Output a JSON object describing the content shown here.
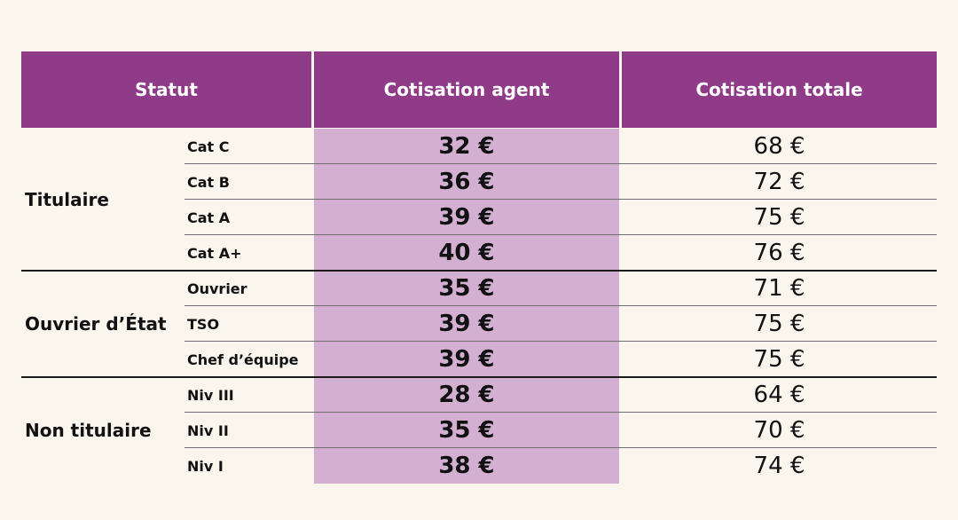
{
  "headers": {
    "statut": "Statut",
    "agent": "Cotisation agent",
    "total": "Cotisation totale"
  },
  "groups": [
    {
      "label": "Titulaire",
      "rows": [
        {
          "sub": "Cat C",
          "agent": "32 €",
          "total": "68 €"
        },
        {
          "sub": "Cat B",
          "agent": "36 €",
          "total": "72 €"
        },
        {
          "sub": "Cat A",
          "agent": "39 €",
          "total": "75 €"
        },
        {
          "sub": "Cat A+",
          "agent": "40 €",
          "total": "76 €"
        }
      ]
    },
    {
      "label": "Ouvrier d’État",
      "rows": [
        {
          "sub": "Ouvrier",
          "agent": "35 €",
          "total": "71 €"
        },
        {
          "sub": "TSO",
          "agent": "39 €",
          "total": "75 €"
        },
        {
          "sub": "Chef d’équipe",
          "agent": "39 €",
          "total": "75 €"
        }
      ]
    },
    {
      "label": "Non titulaire",
      "rows": [
        {
          "sub": "Niv III",
          "agent": "28 €",
          "total": "64 €"
        },
        {
          "sub": "Niv II",
          "agent": "35 €",
          "total": "70 €"
        },
        {
          "sub": "Niv I",
          "agent": "38 €",
          "total": "74 €"
        }
      ]
    }
  ],
  "colors": {
    "header_bg": "#8f3b87",
    "agent_band": "#d3b0d2",
    "page_bg": "#faf6ee"
  }
}
